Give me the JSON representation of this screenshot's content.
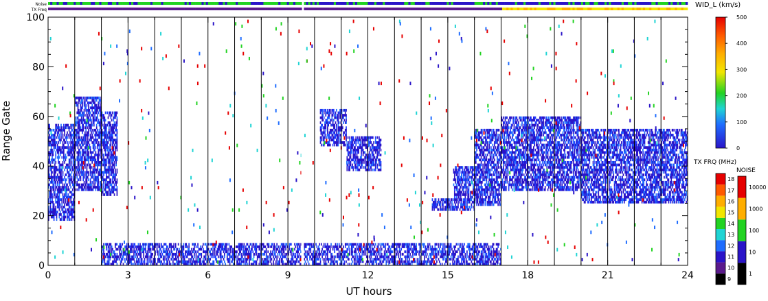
{
  "chart_data": {
    "type": "heatmap",
    "xlabel": "UT hours",
    "ylabel": "Range Gate",
    "xlim": [
      0,
      24
    ],
    "ylim": [
      0,
      100
    ],
    "x_ticks": [
      "0",
      "3",
      "6",
      "9",
      "12",
      "15",
      "18",
      "21",
      "24"
    ],
    "x_tick_values": [
      0,
      3,
      6,
      9,
      12,
      15,
      18,
      21,
      24
    ],
    "y_ticks": [
      "0",
      "20",
      "40",
      "60",
      "80",
      "100"
    ],
    "y_tick_values": [
      0,
      20,
      40,
      60,
      80,
      100
    ],
    "scan_boundaries_ut": [
      1,
      2,
      3,
      4,
      5,
      6,
      7,
      8,
      9,
      10,
      11,
      12,
      13,
      14,
      15,
      16,
      17,
      18,
      19,
      20,
      21,
      22,
      23
    ],
    "data_gap_ut": [
      9.5,
      9.6
    ],
    "top_strips": {
      "noise_label": "Noise",
      "txfreq_label": "TX Freq",
      "txfreq_change_ut": 17
    },
    "width_colorbar": {
      "title": "WID_L (km/s)",
      "ticks": [
        "0",
        "100",
        "200",
        "300",
        "400",
        "500"
      ],
      "tick_values": [
        0,
        100,
        200,
        300,
        400,
        500
      ],
      "range": [
        0,
        500
      ]
    },
    "txfreq_colorbar": {
      "title": "TX FRQ (MHz)",
      "ticks": [
        "9",
        "10",
        "11",
        "12",
        "13",
        "14",
        "15",
        "16",
        "17",
        "18"
      ],
      "colors": [
        "#000000",
        "#5a1a8c",
        "#2a14c8",
        "#1f6dff",
        "#1fd4d4",
        "#22d322",
        "#f2e600",
        "#ffae00",
        "#ff5a00",
        "#e60000"
      ]
    },
    "noise_colorbar": {
      "title": "NOISE",
      "ticks": [
        "1",
        "10",
        "100",
        "1000",
        "10000"
      ],
      "colors": [
        "#000000",
        "#2a14c8",
        "#22d322",
        "#ffae00",
        "#e60000"
      ]
    },
    "echo_regions": [
      {
        "ut": [
          0.0,
          1.0
        ],
        "gates": [
          18,
          57
        ],
        "mean_width": 20
      },
      {
        "ut": [
          1.0,
          2.0
        ],
        "gates": [
          30,
          68
        ],
        "mean_width": 25
      },
      {
        "ut": [
          2.0,
          2.6
        ],
        "gates": [
          28,
          62
        ],
        "mean_width": 30
      },
      {
        "ut": [
          10.2,
          11.2
        ],
        "gates": [
          48,
          63
        ],
        "mean_width": 40
      },
      {
        "ut": [
          11.2,
          12.5
        ],
        "gates": [
          38,
          52
        ],
        "mean_width": 50
      },
      {
        "ut": [
          14.4,
          15.2
        ],
        "gates": [
          22,
          27
        ],
        "mean_width": 30
      },
      {
        "ut": [
          15.2,
          16.0
        ],
        "gates": [
          22,
          40
        ],
        "mean_width": 30
      },
      {
        "ut": [
          16.0,
          17.0
        ],
        "gates": [
          24,
          55
        ],
        "mean_width": 25
      },
      {
        "ut": [
          17.0,
          20.0
        ],
        "gates": [
          30,
          60
        ],
        "mean_width": 30
      },
      {
        "ut": [
          20.0,
          24.0
        ],
        "gates": [
          25,
          55
        ],
        "mean_width": 30
      },
      {
        "ut": [
          2.0,
          17.0
        ],
        "gates": [
          0,
          9
        ],
        "mean_width": 60
      }
    ],
    "colors": {
      "axis": "#000000",
      "background": "#ffffff",
      "strip_purple": "#5a1a8c",
      "strip_blue": "#2a14c8",
      "strip_green": "#22d322",
      "strip_yellow": "#f2e600",
      "strip_orange": "#ffae00"
    }
  }
}
